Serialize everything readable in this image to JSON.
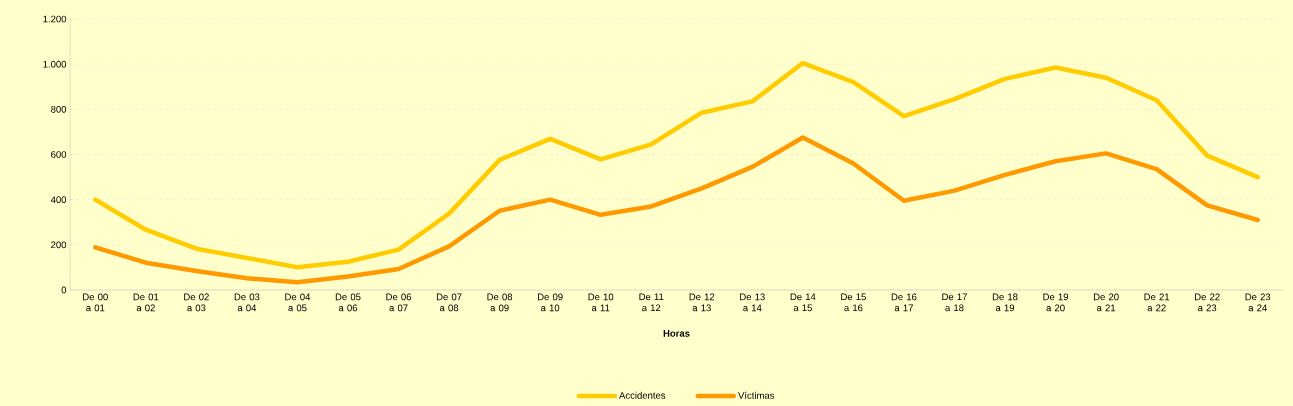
{
  "chart_data": {
    "type": "line",
    "xlabel": "Horas",
    "categories": [
      "De 00 a 01",
      "De 01 a 02",
      "De 02 a 03",
      "De 03 a 04",
      "De 04 a 05",
      "De 05 a 06",
      "De 06 a 07",
      "De 07 a 08",
      "De 08 a 09",
      "De 09 a 10",
      "De 10 a 11",
      "De 11 a 12",
      "De 12 a 13",
      "De 13 a 14",
      "De 14 a 15",
      "De 15 a 16",
      "De 16 a 17",
      "De 17 a 18",
      "De 18 a 19",
      "De 19 a 20",
      "De 20 a 21",
      "De 21 a 22",
      "De 22 a 23",
      "De 23 a 24"
    ],
    "series": [
      {
        "name": "Accidentes",
        "color": "#ffcc00",
        "values": [
          400,
          267,
          183,
          142,
          101,
          125,
          179,
          338,
          576,
          669,
          578,
          645,
          785,
          835,
          1005,
          920,
          770,
          845,
          935,
          985,
          940,
          840,
          595,
          500
        ]
      },
      {
        "name": "Víctimas",
        "color": "#ff9900",
        "values": [
          189,
          121,
          84,
          52,
          34,
          60,
          93,
          193,
          351,
          400,
          333,
          370,
          450,
          545,
          675,
          560,
          395,
          440,
          510,
          570,
          605,
          535,
          375,
          310
        ]
      }
    ],
    "ylim": [
      0,
      1200
    ],
    "yticks": [
      0,
      200,
      400,
      600,
      800,
      {
        "value": 1000,
        "label": "1.000"
      },
      {
        "value": 1200,
        "label": "1.200"
      }
    ],
    "grid": "y",
    "legend": "bottom",
    "marker": "none",
    "line_style": "solid"
  }
}
